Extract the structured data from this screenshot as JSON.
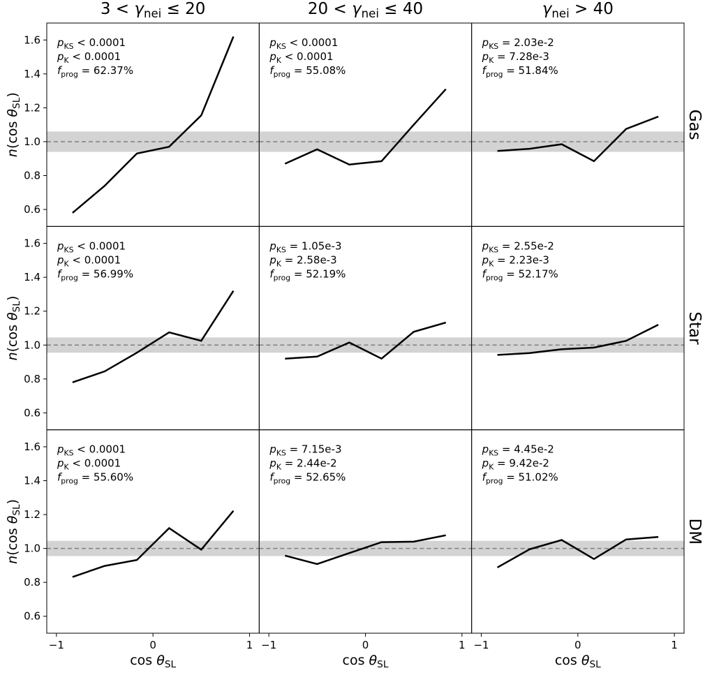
{
  "chart_data": {
    "type": "line",
    "description_labels": {
      "x_axis_label": "cos θ_SL",
      "y_axis_label": "n(cos θ_SL)"
    },
    "columns": [
      "3 < γ_nei ≤ 20",
      "20 < γ_nei ≤ 40",
      "γ_nei > 40"
    ],
    "rows": [
      "Gas",
      "Star",
      "DM"
    ],
    "x": [
      -0.833,
      -0.5,
      -0.167,
      0.167,
      0.5,
      0.833
    ],
    "xlim": [
      -1.1,
      1.1
    ],
    "ylim": [
      0.5,
      1.7
    ],
    "xticks": [
      -1,
      0,
      1
    ],
    "xtick_labels": [
      "−1",
      "0",
      "1"
    ],
    "yticks": [
      0.6,
      0.8,
      1.0,
      1.2,
      1.4,
      1.6
    ],
    "ytick_labels": [
      "0.6",
      "0.8",
      "1.0",
      "1.2",
      "1.4",
      "1.6"
    ],
    "reference_line": 1.0,
    "panels": [
      {
        "row": 0,
        "col": 0,
        "values": [
          0.58,
          0.74,
          0.93,
          0.97,
          1.155,
          1.62
        ],
        "band": [
          0.94,
          1.06
        ],
        "p_KS": "< 0.0001",
        "p_K": "< 0.0001",
        "f_prog": "= 62.37%"
      },
      {
        "row": 0,
        "col": 1,
        "values": [
          0.87,
          0.955,
          0.865,
          0.885,
          1.1,
          1.31
        ],
        "band": [
          0.94,
          1.06
        ],
        "p_KS": "< 0.0001",
        "p_K": "< 0.0001",
        "f_prog": "= 55.08%"
      },
      {
        "row": 0,
        "col": 2,
        "values": [
          0.945,
          0.958,
          0.985,
          0.885,
          1.075,
          1.148
        ],
        "band": [
          0.94,
          1.06
        ],
        "p_KS": "= 2.03e-2",
        "p_K": "= 7.28e-3",
        "f_prog": "= 51.84%"
      },
      {
        "row": 1,
        "col": 0,
        "values": [
          0.78,
          0.845,
          0.955,
          1.075,
          1.025,
          1.32
        ],
        "band": [
          0.955,
          1.045
        ],
        "p_KS": "< 0.0001",
        "p_K": "< 0.0001",
        "f_prog": "= 56.99%"
      },
      {
        "row": 1,
        "col": 1,
        "values": [
          0.92,
          0.932,
          1.015,
          0.92,
          1.078,
          1.133
        ],
        "band": [
          0.955,
          1.045
        ],
        "p_KS": "= 1.05e-3",
        "p_K": "= 2.58e-3",
        "f_prog": "= 52.19%"
      },
      {
        "row": 1,
        "col": 2,
        "values": [
          0.942,
          0.953,
          0.975,
          0.985,
          1.025,
          1.12
        ],
        "band": [
          0.955,
          1.045
        ],
        "p_KS": "= 2.55e-2",
        "p_K": "= 2.23e-3",
        "f_prog": "= 52.17%"
      },
      {
        "row": 2,
        "col": 0,
        "values": [
          0.832,
          0.897,
          0.932,
          1.12,
          0.993,
          1.222
        ],
        "band": [
          0.955,
          1.045
        ],
        "p_KS": "< 0.0001",
        "p_K": "< 0.0001",
        "f_prog": "= 55.60%"
      },
      {
        "row": 2,
        "col": 1,
        "values": [
          0.958,
          0.908,
          0.973,
          1.037,
          1.04,
          1.078
        ],
        "band": [
          0.955,
          1.045
        ],
        "p_KS": "= 7.15e-3",
        "p_K": "= 2.44e-2",
        "f_prog": "= 52.65%"
      },
      {
        "row": 2,
        "col": 2,
        "values": [
          0.888,
          0.995,
          1.05,
          0.938,
          1.053,
          1.068
        ],
        "band": [
          0.955,
          1.045
        ],
        "p_KS": "= 4.45e-2",
        "p_K": "= 9.42e-2",
        "f_prog": "= 51.02%"
      }
    ]
  },
  "colors": {
    "line": "#000000",
    "band": "#d3d3d3",
    "reference": "#808080",
    "frame": "#000000"
  }
}
